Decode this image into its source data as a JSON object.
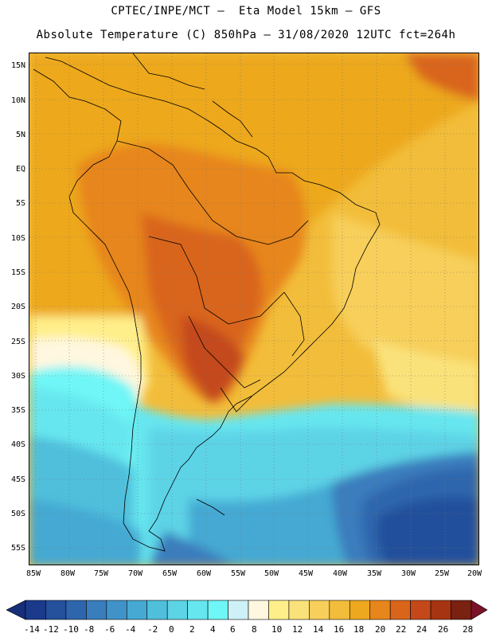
{
  "header": {
    "line1": "CPTEC/INPE/MCT –  Eta Model 15km – GFS",
    "line2": "Absolute Temperature (C) 850hPa – 31/08/2020 12UTC fct=264h"
  },
  "map": {
    "lat_labels": [
      "15N",
      "10N",
      "5N",
      "EQ",
      "5S",
      "10S",
      "15S",
      "20S",
      "25S",
      "30S",
      "35S",
      "40S",
      "45S",
      "50S",
      "55S"
    ],
    "lon_labels": [
      "85W",
      "80W",
      "75W",
      "70W",
      "65W",
      "60W",
      "55W",
      "50W",
      "45W",
      "40W",
      "35W",
      "30W",
      "25W",
      "20W"
    ]
  },
  "colorbar": {
    "labels": [
      "-14",
      "-12",
      "-10",
      "-8",
      "-6",
      "-4",
      "-2",
      "0",
      "2",
      "4",
      "6",
      "8",
      "10",
      "12",
      "14",
      "16",
      "18",
      "20",
      "22",
      "24",
      "26",
      "28"
    ],
    "colors": [
      "#1b3a8c",
      "#24509c",
      "#2e66ad",
      "#3a7dbd",
      "#3f93c9",
      "#45a9d3",
      "#4fbfdc",
      "#5dd3e6",
      "#66e6ef",
      "#6ff6f6",
      "#cdf1f6",
      "#fff7df",
      "#ffef8a",
      "#fae27a",
      "#f7cf5a",
      "#f2bd3a",
      "#eda81f",
      "#e7861a",
      "#d9651a",
      "#c4481a",
      "#a63412",
      "#7a2112"
    ]
  }
}
